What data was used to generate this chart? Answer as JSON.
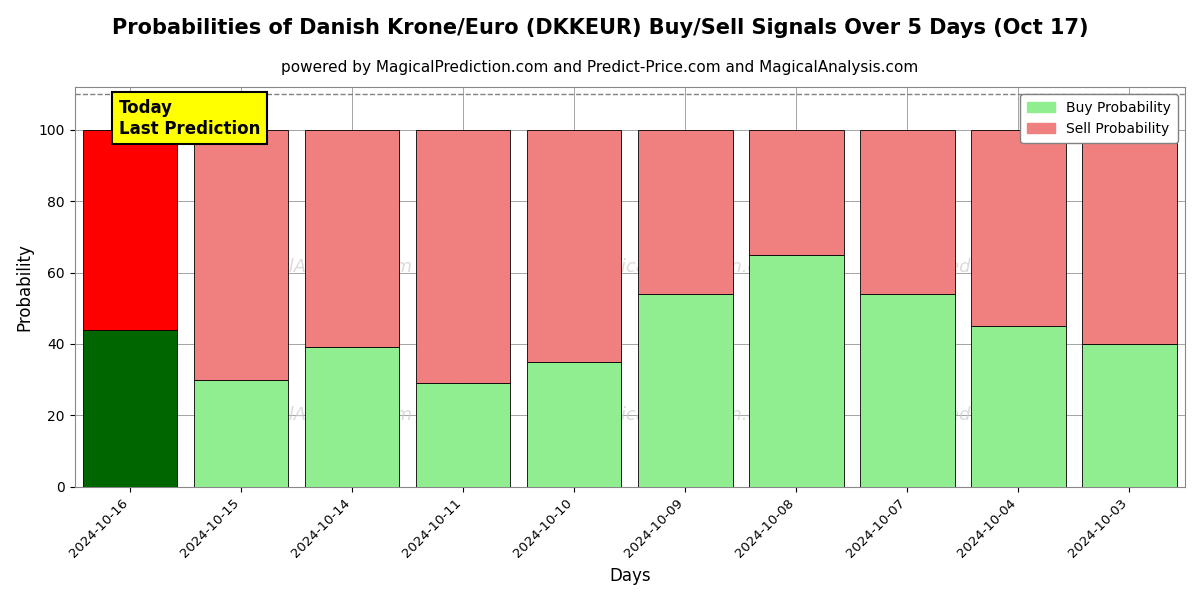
{
  "title": "Probabilities of Danish Krone/Euro (DKKEUR) Buy/Sell Signals Over 5 Days (Oct 17)",
  "subtitle": "powered by MagicalPrediction.com and Predict-Price.com and MagicalAnalysis.com",
  "xlabel": "Days",
  "ylabel": "Probability",
  "categories": [
    "2024-10-16",
    "2024-10-15",
    "2024-10-14",
    "2024-10-11",
    "2024-10-10",
    "2024-10-09",
    "2024-10-08",
    "2024-10-07",
    "2024-10-04",
    "2024-10-03"
  ],
  "buy_values": [
    44,
    30,
    39,
    29,
    35,
    54,
    65,
    54,
    45,
    40
  ],
  "sell_values": [
    56,
    70,
    61,
    71,
    65,
    46,
    35,
    46,
    55,
    60
  ],
  "today_buy_color": "#006600",
  "today_sell_color": "#ff0000",
  "buy_color": "#90EE90",
  "sell_color": "#F08080",
  "today_label_bg": "#ffff00",
  "today_label_text": "Today\nLast Prediction",
  "legend_buy": "Buy Probability",
  "legend_sell": "Sell Probability",
  "ylim": [
    0,
    112
  ],
  "yticks": [
    0,
    20,
    40,
    60,
    80,
    100
  ],
  "dashed_line_y": 110,
  "title_fontsize": 15,
  "subtitle_fontsize": 11,
  "bar_width": 0.85
}
